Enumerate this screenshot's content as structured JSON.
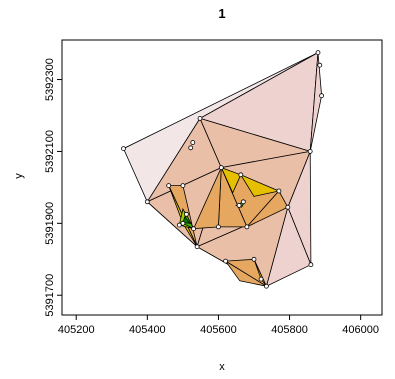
{
  "chart_data": {
    "type": "scatter",
    "title": "1",
    "xlabel": "x",
    "ylabel": "y",
    "xlim": [
      405160,
      406060
    ],
    "ylim": [
      5391645,
      5392410
    ],
    "x_ticks": [
      405200,
      405400,
      405600,
      405800,
      406000
    ],
    "x_tick_labels": [
      "405200",
      "405400",
      "405600",
      "405800",
      "406000"
    ],
    "y_ticks": [
      5391700,
      5391900,
      5392100,
      5392300
    ],
    "y_tick_labels": [
      "5391700",
      "5391900",
      "5392100",
      "5392300"
    ],
    "grid": false,
    "palette": [
      "#f2e6e6",
      "#eed2cf",
      "#eabfa8",
      "#e6a860",
      "#e6c000",
      "#a0d000",
      "#40b000",
      "#008000"
    ],
    "points": [
      {
        "x": 405880,
        "y": 5392375
      },
      {
        "x": 405885,
        "y": 5392340
      },
      {
        "x": 405890,
        "y": 5392255
      },
      {
        "x": 405333,
        "y": 5392108
      },
      {
        "x": 405548,
        "y": 5392192
      },
      {
        "x": 405528,
        "y": 5392125
      },
      {
        "x": 405522,
        "y": 5392110
      },
      {
        "x": 405858,
        "y": 5392100
      },
      {
        "x": 405400,
        "y": 5391960
      },
      {
        "x": 405460,
        "y": 5392005
      },
      {
        "x": 405500,
        "y": 5392005
      },
      {
        "x": 405608,
        "y": 5392055
      },
      {
        "x": 405663,
        "y": 5392035
      },
      {
        "x": 405770,
        "y": 5391990
      },
      {
        "x": 405795,
        "y": 5391945
      },
      {
        "x": 405860,
        "y": 5391785
      },
      {
        "x": 405510,
        "y": 5391925
      },
      {
        "x": 405530,
        "y": 5391885
      },
      {
        "x": 405500,
        "y": 5391900
      },
      {
        "x": 405490,
        "y": 5391895
      },
      {
        "x": 405600,
        "y": 5391890
      },
      {
        "x": 405680,
        "y": 5391890
      },
      {
        "x": 405540,
        "y": 5391835
      },
      {
        "x": 405620,
        "y": 5391795
      },
      {
        "x": 405700,
        "y": 5391800
      },
      {
        "x": 405720,
        "y": 5391745
      },
      {
        "x": 405735,
        "y": 5391725
      },
      {
        "x": 405658,
        "y": 5391950
      },
      {
        "x": 405670,
        "y": 5391960
      }
    ],
    "triangles": [
      {
        "v": [
          [
            405333,
            5392108
          ],
          [
            405880,
            5392375
          ],
          [
            405400,
            5391960
          ]
        ],
        "level": 0
      },
      {
        "v": [
          [
            405880,
            5392375
          ],
          [
            405548,
            5392192
          ],
          [
            405400,
            5391960
          ]
        ],
        "level": 1
      },
      {
        "v": [
          [
            405880,
            5392375
          ],
          [
            405858,
            5392100
          ],
          [
            405548,
            5392192
          ]
        ],
        "level": 1
      },
      {
        "v": [
          [
            405880,
            5392375
          ],
          [
            405890,
            5392255
          ],
          [
            405858,
            5392100
          ]
        ],
        "level": 1
      },
      {
        "v": [
          [
            405858,
            5392100
          ],
          [
            405860,
            5391785
          ],
          [
            405795,
            5391945
          ]
        ],
        "level": 1
      },
      {
        "v": [
          [
            405860,
            5391785
          ],
          [
            405735,
            5391725
          ],
          [
            405795,
            5391945
          ]
        ],
        "level": 1
      },
      {
        "v": [
          [
            405548,
            5392192
          ],
          [
            405608,
            5392055
          ],
          [
            405400,
            5391960
          ]
        ],
        "level": 2
      },
      {
        "v": [
          [
            405548,
            5392192
          ],
          [
            405858,
            5392100
          ],
          [
            405608,
            5392055
          ]
        ],
        "level": 2
      },
      {
        "v": [
          [
            405608,
            5392055
          ],
          [
            405858,
            5392100
          ],
          [
            405795,
            5391945
          ]
        ],
        "level": 2
      },
      {
        "v": [
          [
            405400,
            5391960
          ],
          [
            405608,
            5392055
          ],
          [
            405540,
            5391835
          ]
        ],
        "level": 2
      },
      {
        "v": [
          [
            405540,
            5391835
          ],
          [
            405608,
            5392055
          ],
          [
            405795,
            5391945
          ]
        ],
        "level": 2
      },
      {
        "v": [
          [
            405540,
            5391835
          ],
          [
            405795,
            5391945
          ],
          [
            405735,
            5391725
          ]
        ],
        "level": 2
      },
      {
        "v": [
          [
            405400,
            5391960
          ],
          [
            405540,
            5391835
          ],
          [
            405735,
            5391725
          ]
        ],
        "level": 1
      },
      {
        "v": [
          [
            405608,
            5392055
          ],
          [
            405770,
            5391990
          ],
          [
            405680,
            5391890
          ]
        ],
        "level": 3
      },
      {
        "v": [
          [
            405770,
            5391990
          ],
          [
            405795,
            5391945
          ],
          [
            405680,
            5391890
          ]
        ],
        "level": 3
      },
      {
        "v": [
          [
            405608,
            5392055
          ],
          [
            405680,
            5391890
          ],
          [
            405600,
            5391890
          ]
        ],
        "level": 3
      },
      {
        "v": [
          [
            405608,
            5392055
          ],
          [
            405600,
            5391890
          ],
          [
            405530,
            5391885
          ]
        ],
        "level": 3
      },
      {
        "v": [
          [
            405460,
            5392005
          ],
          [
            405500,
            5392005
          ],
          [
            405540,
            5391835
          ]
        ],
        "level": 3
      },
      {
        "v": [
          [
            405620,
            5391795
          ],
          [
            405700,
            5391800
          ],
          [
            405735,
            5391725
          ]
        ],
        "level": 3
      },
      {
        "v": [
          [
            405620,
            5391795
          ],
          [
            405735,
            5391725
          ],
          [
            405660,
            5391740
          ]
        ],
        "level": 3
      },
      {
        "v": [
          [
            405608,
            5392055
          ],
          [
            405663,
            5392035
          ],
          [
            405640,
            5391985
          ]
        ],
        "level": 4
      },
      {
        "v": [
          [
            405663,
            5392035
          ],
          [
            405770,
            5391990
          ],
          [
            405700,
            5391975
          ]
        ],
        "level": 4
      },
      {
        "v": [
          [
            405460,
            5392005
          ],
          [
            405500,
            5391900
          ],
          [
            405540,
            5391835
          ]
        ],
        "level": 4
      },
      {
        "v": [
          [
            405700,
            5391800
          ],
          [
            405720,
            5391745
          ],
          [
            405735,
            5391725
          ]
        ],
        "level": 4
      },
      {
        "v": [
          [
            405500,
            5391940
          ],
          [
            405530,
            5391885
          ],
          [
            405490,
            5391895
          ]
        ],
        "level": 5
      },
      {
        "v": [
          [
            405510,
            5391925
          ],
          [
            405530,
            5391885
          ],
          [
            405500,
            5391900
          ]
        ],
        "level": 6
      },
      {
        "v": [
          [
            405505,
            5391918
          ],
          [
            405520,
            5391900
          ],
          [
            405500,
            5391902
          ]
        ],
        "level": 7
      },
      {
        "v": [
          [
            405650,
            5391950
          ],
          [
            405675,
            5391962
          ],
          [
            405665,
            5391945
          ]
        ],
        "level": 6
      }
    ]
  }
}
